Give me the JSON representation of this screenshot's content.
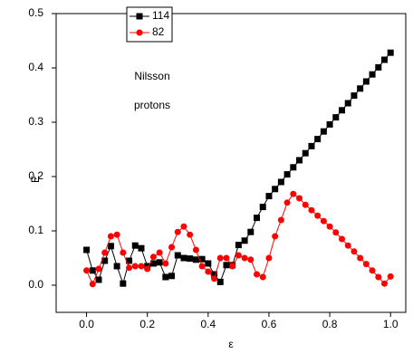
{
  "chart_data": {
    "type": "line",
    "ylabel": "E",
    "xlabel": "ε",
    "annotations": [
      "Nilsson",
      "protons"
    ],
    "x": [
      0,
      0.02,
      0.04,
      0.06,
      0.08,
      0.1,
      0.12,
      0.14,
      0.16,
      0.18,
      0.2,
      0.22,
      0.24,
      0.26,
      0.28,
      0.3,
      0.32,
      0.34,
      0.36,
      0.38,
      0.4,
      0.42,
      0.44,
      0.46,
      0.48,
      0.5,
      0.52,
      0.54,
      0.56,
      0.58,
      0.6,
      0.62,
      0.64,
      0.66,
      0.68,
      0.7,
      0.72,
      0.74,
      0.76,
      0.78,
      0.8,
      0.82,
      0.84,
      0.86,
      0.88,
      0.9,
      0.92,
      0.94,
      0.96,
      0.98,
      1.0
    ],
    "series": [
      {
        "name": "114",
        "color": "#000000",
        "marker": "square",
        "values": [
          0.065,
          0.027,
          0.01,
          0.045,
          0.072,
          0.035,
          0.003,
          0.045,
          0.073,
          0.068,
          0.035,
          0.04,
          0.042,
          0.015,
          0.017,
          0.055,
          0.05,
          0.049,
          0.047,
          0.048,
          0.04,
          0.02,
          0.006,
          0.037,
          0.037,
          0.074,
          0.082,
          0.098,
          0.124,
          0.144,
          0.164,
          0.177,
          0.19,
          0.204,
          0.217,
          0.23,
          0.243,
          0.256,
          0.269,
          0.283,
          0.296,
          0.309,
          0.322,
          0.335,
          0.349,
          0.362,
          0.375,
          0.388,
          0.401,
          0.415,
          0.428
        ]
      },
      {
        "name": "82",
        "color": "#ff0000",
        "marker": "circle",
        "values": [
          0.027,
          0.002,
          0.03,
          0.06,
          0.09,
          0.093,
          0.06,
          0.032,
          0.035,
          0.035,
          0.03,
          0.052,
          0.06,
          0.04,
          0.07,
          0.098,
          0.108,
          0.093,
          0.065,
          0.035,
          0.025,
          0.012,
          0.05,
          0.05,
          0.035,
          0.055,
          0.05,
          0.047,
          0.02,
          0.015,
          0.05,
          0.09,
          0.12,
          0.152,
          0.168,
          0.16,
          0.148,
          0.138,
          0.128,
          0.118,
          0.108,
          0.097,
          0.085,
          0.073,
          0.062,
          0.05,
          0.039,
          0.027,
          0.015,
          0.003,
          0.016
        ]
      }
    ],
    "xlim": [
      -0.1,
      1.05
    ],
    "ylim": [
      -0.05,
      0.5
    ],
    "xticks": [
      {
        "value": 0,
        "label": "0.0"
      },
      0.2,
      0.4,
      0.6,
      0.8,
      {
        "value": 1,
        "label": "1.0"
      }
    ],
    "yticks": [
      {
        "value": 0,
        "label": "0.0"
      },
      0.1,
      0.2,
      0.3,
      0.4,
      0.5
    ],
    "legend": "upper left"
  }
}
